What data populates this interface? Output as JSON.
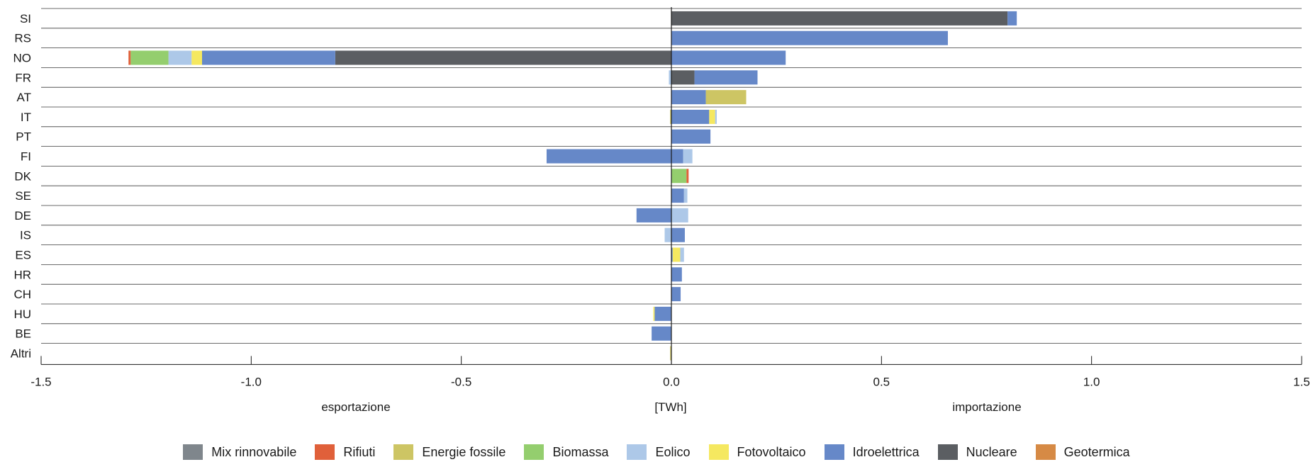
{
  "chart_data": {
    "type": "bar",
    "orientation": "horizontal",
    "stacked": true,
    "categories": [
      "SI",
      "RS",
      "NO",
      "FR",
      "AT",
      "IT",
      "PT",
      "FI",
      "DK",
      "SE",
      "DE",
      "IS",
      "ES",
      "HR",
      "CH",
      "HU",
      "BE",
      "Altri"
    ],
    "xlim": [
      -1.5,
      1.5
    ],
    "x_ticks": [
      "-1.5",
      "-1.0",
      "-0.5",
      "0.0",
      "0.5",
      "1.0",
      "1.5"
    ],
    "x_tick_values": [
      -1.5,
      -1.0,
      -0.5,
      0.0,
      0.5,
      1.0,
      1.5
    ],
    "xlabel": "[TWh]",
    "left_label": "esportazione",
    "right_label": "importazione",
    "grid": "horizontal separators between categories",
    "legend_position": "bottom",
    "series": [
      {
        "name": "Mix rinnovabile",
        "color": "#7f868c",
        "values": [
          0,
          0,
          0,
          0,
          0,
          0,
          0,
          0,
          0,
          0,
          0,
          0,
          0,
          0,
          0,
          0,
          0,
          0
        ],
        "neg": [
          0,
          0,
          0,
          0,
          0,
          0,
          0,
          0,
          0,
          0,
          0,
          0,
          0,
          0,
          0,
          0,
          0,
          0
        ]
      },
      {
        "name": "Rifiuti",
        "color": "#e0603a",
        "values": [
          0,
          0,
          0,
          0,
          0,
          0,
          0,
          0,
          0.005,
          0,
          0,
          0,
          0,
          0,
          0,
          0,
          0,
          0
        ],
        "neg": [
          0,
          0,
          -0.005,
          0,
          0,
          0,
          0,
          0,
          0,
          0,
          0,
          0,
          0,
          0,
          0,
          0,
          0,
          0
        ]
      },
      {
        "name": "Energie fossile",
        "color": "#cdc564",
        "values": [
          0,
          0,
          0,
          0,
          0.096,
          0,
          0,
          0,
          0,
          0,
          0,
          0,
          0,
          0,
          0,
          0,
          0,
          0
        ],
        "neg": [
          0,
          0,
          0,
          0,
          0,
          -0.003,
          0,
          0,
          0,
          0,
          0,
          0,
          0,
          0,
          0,
          0,
          0,
          -0.003
        ]
      },
      {
        "name": "Biomassa",
        "color": "#94ce6e",
        "values": [
          0,
          0,
          0,
          0,
          0,
          0,
          0,
          0,
          0.036,
          0,
          0,
          0,
          0,
          0,
          0,
          0,
          0,
          0
        ],
        "neg": [
          0,
          0,
          -0.09,
          0,
          0,
          0,
          0,
          0,
          0,
          0,
          0,
          0,
          0,
          0,
          0,
          0,
          0,
          0
        ]
      },
      {
        "name": "Eolico",
        "color": "#adc8e8",
        "values": [
          0,
          0,
          0,
          0,
          0,
          0.004,
          0,
          0.022,
          0,
          0.008,
          0.04,
          0,
          0.009,
          0,
          0,
          0,
          0,
          0
        ],
        "neg": [
          0,
          0,
          -0.055,
          -0.006,
          0,
          0,
          0,
          0,
          0,
          0,
          0,
          -0.016,
          0,
          0,
          0,
          0,
          0,
          0
        ]
      },
      {
        "name": "Fotovoltaico",
        "color": "#f5e860",
        "values": [
          0,
          0,
          0,
          0,
          0,
          0.014,
          0,
          0,
          0,
          0,
          0,
          0,
          0.018,
          0,
          0,
          0,
          0,
          0
        ],
        "neg": [
          0,
          0,
          -0.025,
          0,
          0,
          0,
          0,
          0,
          0,
          0,
          0,
          0,
          0,
          0,
          0,
          -0.003,
          0,
          0
        ]
      },
      {
        "name": "Idroelettrica",
        "color": "#6688c8",
        "values": [
          0.022,
          0.658,
          0.272,
          0.15,
          0.082,
          0.09,
          0.093,
          0.028,
          0,
          0.03,
          0,
          0.032,
          0.003,
          0.025,
          0.022,
          0,
          0,
          0
        ],
        "neg": [
          0,
          0,
          -0.317,
          0,
          0,
          0,
          0,
          -0.297,
          0,
          0,
          -0.083,
          0,
          0,
          0,
          0,
          -0.04,
          -0.047,
          0
        ]
      },
      {
        "name": "Nucleare",
        "color": "#5b5e62",
        "values": [
          0.8,
          0,
          0,
          0.055,
          0,
          0,
          0,
          0,
          0,
          0,
          0,
          0,
          0,
          0,
          0,
          0,
          0,
          0
        ],
        "neg": [
          0,
          0,
          -0.8,
          0,
          0,
          0,
          0,
          0,
          0,
          0,
          0,
          0,
          0,
          0,
          0,
          0,
          0,
          0
        ]
      },
      {
        "name": "Geotermica",
        "color": "#d68a45",
        "values": [
          0,
          0,
          0,
          0,
          0,
          0,
          0,
          0,
          0,
          0,
          0,
          0,
          0,
          0,
          0,
          0,
          0,
          0
        ],
        "neg": [
          0,
          0,
          0,
          0,
          0,
          0,
          0,
          0,
          0,
          0,
          0,
          0,
          0,
          0,
          0,
          0,
          0,
          0
        ]
      }
    ]
  }
}
